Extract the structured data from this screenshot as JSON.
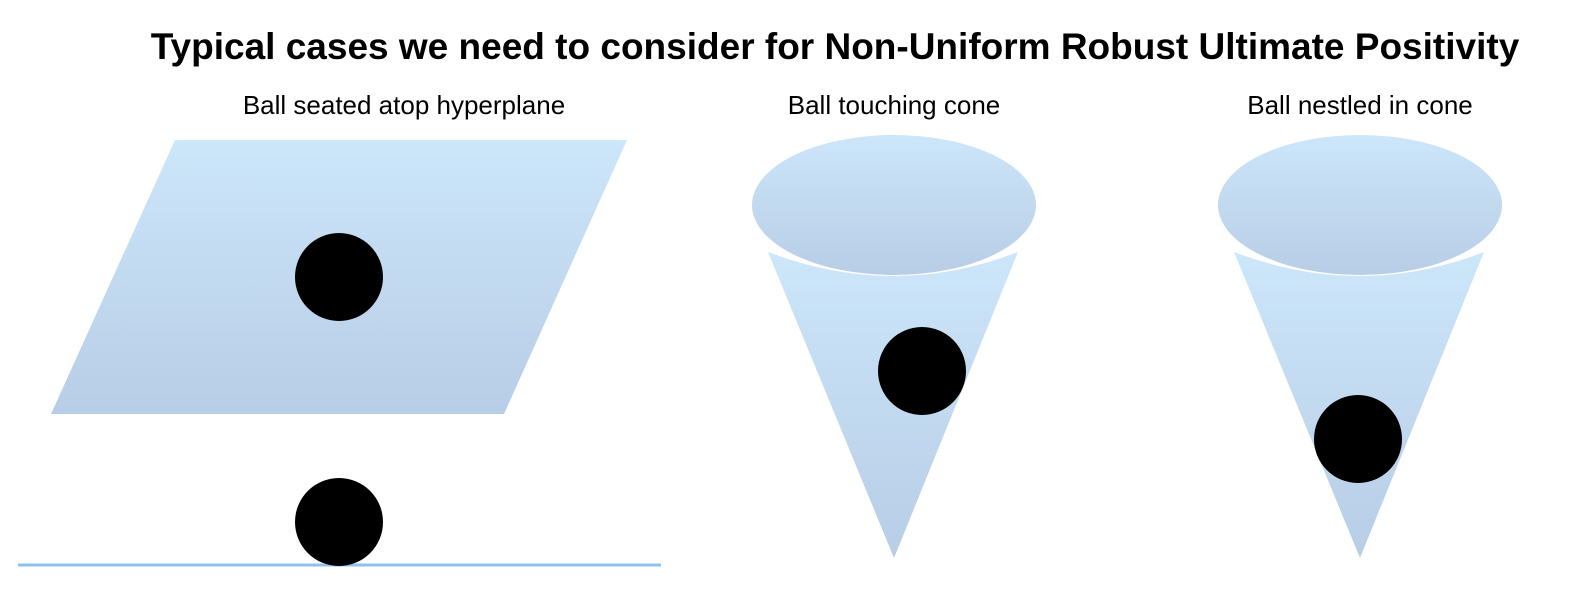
{
  "title": "Typical cases we need to consider for Non-Uniform Robust Ultimate Positivity",
  "panels": [
    {
      "caption": "Ball seated atop hyperplane"
    },
    {
      "caption": "Ball touching cone"
    },
    {
      "caption": "Ball nestled in cone"
    }
  ],
  "colors": {
    "fill_top": "#cce6fa",
    "fill_bottom": "#b8cde6",
    "line": "#8ec2ec",
    "ball": "#000000"
  }
}
